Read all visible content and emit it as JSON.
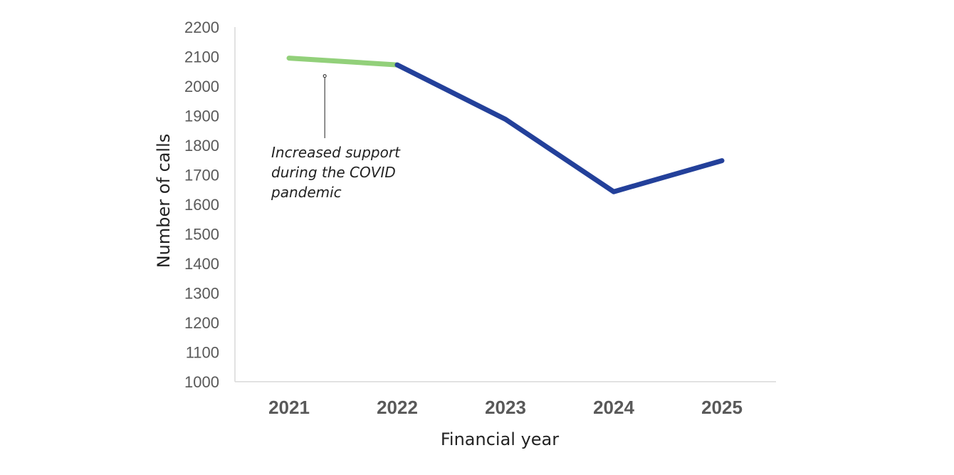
{
  "chart_data": {
    "type": "line",
    "title": "",
    "xlabel": "Financial year",
    "ylabel": "Number of calls",
    "categories": [
      "2021",
      "2022",
      "2023",
      "2024",
      "2025"
    ],
    "values": [
      2095,
      2072,
      1888,
      1643,
      1748
    ],
    "ylim": [
      1000,
      2200
    ],
    "yticks": [
      "1000",
      "1100",
      "1200",
      "1300",
      "1400",
      "1500",
      "1600",
      "1700",
      "1800",
      "1900",
      "2000",
      "2100",
      "2200"
    ],
    "grid": false,
    "legend": "none",
    "segments": [
      {
        "name": "covid-period",
        "from_index": 0,
        "to_index": 1,
        "color": "#92d07a"
      },
      {
        "name": "post-covid",
        "from_index": 1,
        "to_index": 4,
        "color": "#23409a"
      }
    ],
    "annotations": [
      {
        "lines": [
          "Increased support",
          "during the COVID",
          "pandemic"
        ],
        "anchor_category_fraction": 0.33,
        "anchor_value": 2020
      }
    ]
  }
}
